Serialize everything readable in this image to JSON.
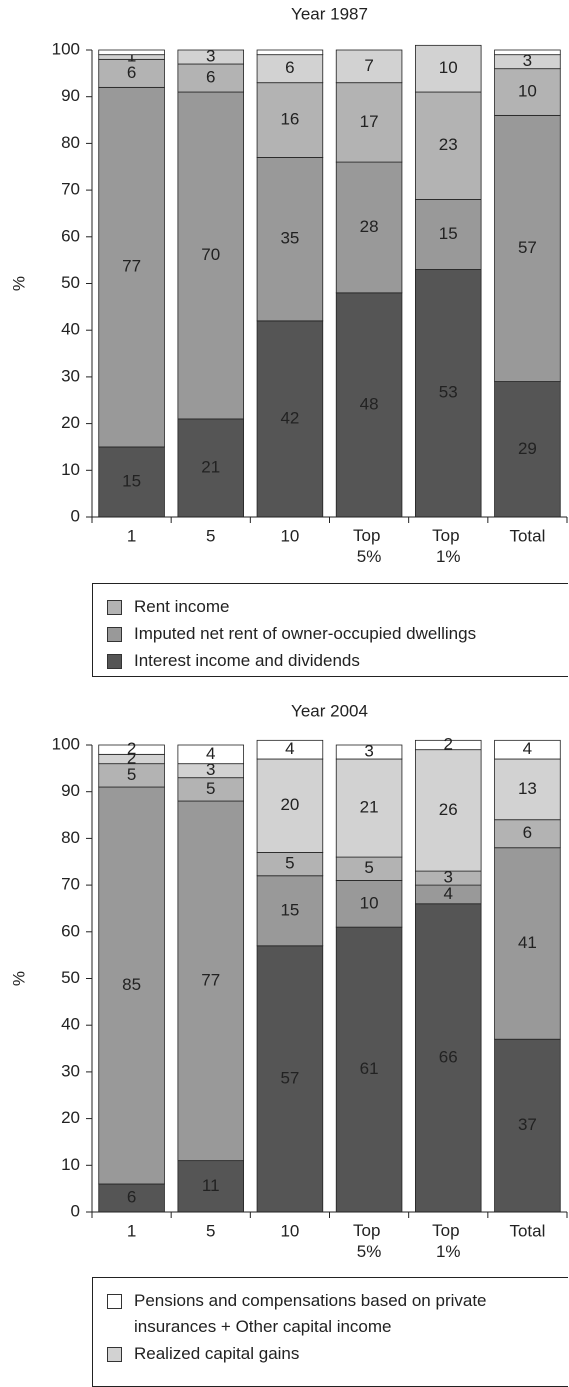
{
  "chart_data": [
    {
      "type": "bar",
      "stacked": true,
      "title": "Year 1987",
      "y_label": "%",
      "categories": [
        "1",
        "5",
        "10",
        "Top 5%",
        "Top 1%",
        "Total"
      ],
      "ylim": [
        0,
        100
      ],
      "yticks": [
        0,
        10,
        20,
        30,
        40,
        50,
        60,
        70,
        80,
        90,
        100
      ],
      "series": [
        {
          "name": "Interest income and dividends",
          "color": "#555555",
          "values": [
            15,
            21,
            42,
            48,
            53,
            29
          ]
        },
        {
          "name": "Imputed net rent of owner-occupied dwellings",
          "color": "#999999",
          "values": [
            77,
            70,
            35,
            28,
            15,
            57
          ]
        },
        {
          "name": "Rent income",
          "color": "#b3b3b3",
          "values": [
            6,
            6,
            16,
            17,
            23,
            10
          ]
        },
        {
          "color": "#d2d2d2",
          "values": [
            1,
            3,
            6,
            7,
            10,
            3
          ]
        },
        {
          "color": "#ffffff",
          "values": [
            1,
            null,
            1,
            null,
            null,
            1
          ],
          "value_labels": [
            null,
            null,
            null,
            null,
            null,
            null
          ]
        }
      ]
    },
    {
      "type": "bar",
      "stacked": true,
      "title": "Year 2004",
      "y_label": "%",
      "categories": [
        "1",
        "5",
        "10",
        "Top 5%",
        "Top 1%",
        "Total"
      ],
      "ylim": [
        0,
        100
      ],
      "yticks": [
        0,
        10,
        20,
        30,
        40,
        50,
        60,
        70,
        80,
        90,
        100
      ],
      "series": [
        {
          "color": "#555555",
          "values": [
            6,
            11,
            57,
            61,
            66,
            37
          ]
        },
        {
          "color": "#999999",
          "values": [
            85,
            77,
            15,
            10,
            4,
            41
          ]
        },
        {
          "color": "#b3b3b3",
          "values": [
            5,
            5,
            5,
            5,
            3,
            6
          ]
        },
        {
          "name": "Realized capital gains",
          "color": "#d2d2d2",
          "values": [
            2,
            3,
            20,
            21,
            26,
            13
          ]
        },
        {
          "name": "Pensions and compensations based on private insurances + Other capital income",
          "color": "#ffffff",
          "values": [
            2,
            4,
            4,
            3,
            2,
            4
          ]
        }
      ]
    }
  ]
}
